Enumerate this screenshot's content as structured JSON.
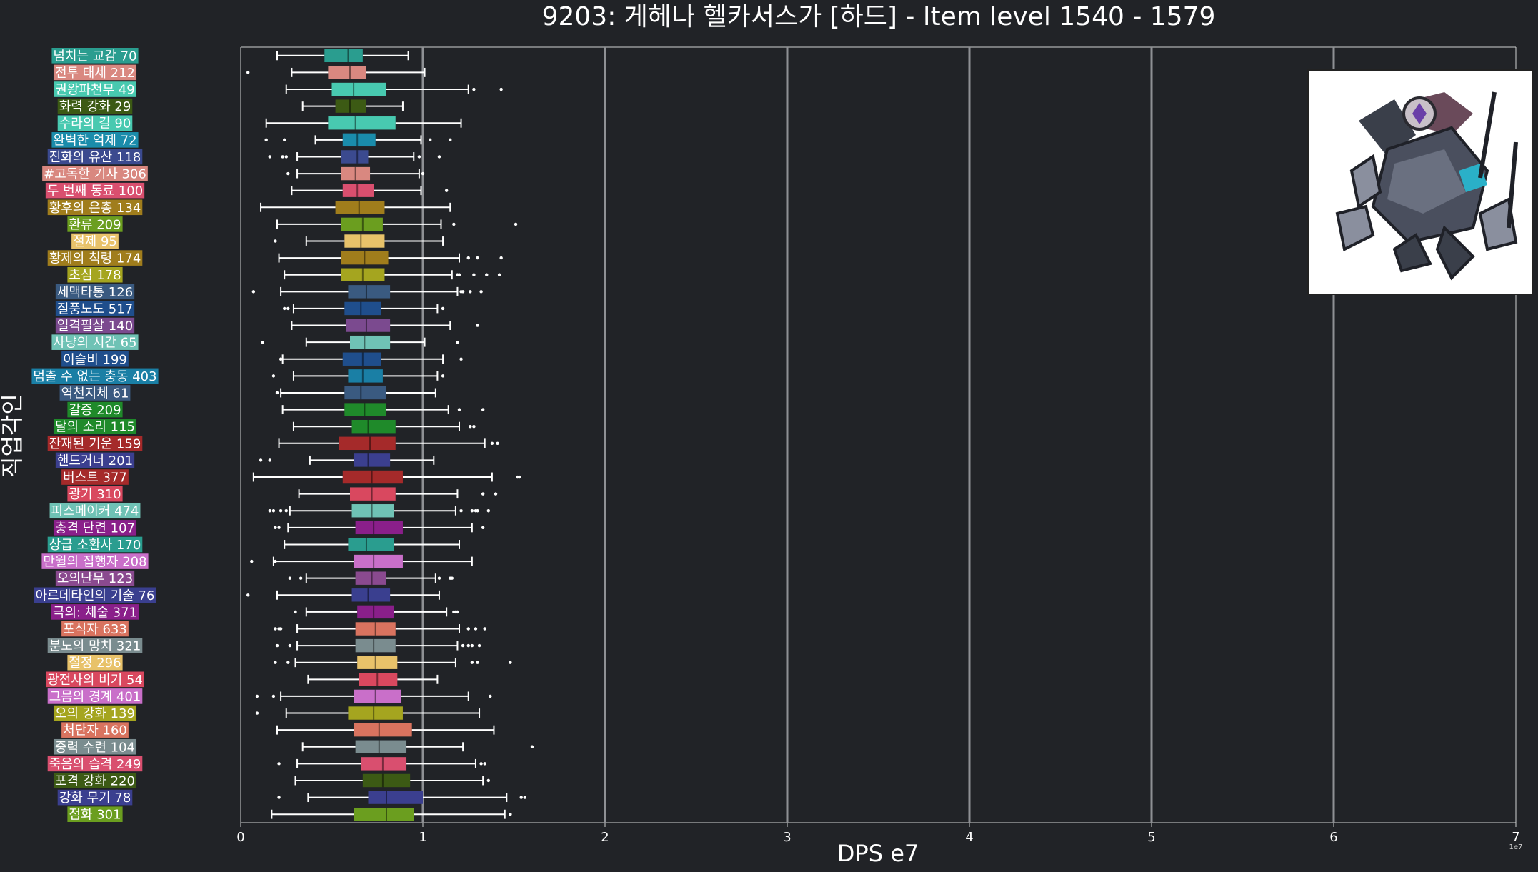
{
  "chart_data": {
    "type": "box",
    "orientation": "horizontal",
    "title": "9203: 게헤나 헬카서스가 [하드] - Item level 1540 - 1579",
    "xlabel": "DPS e7",
    "ylabel": "직업각인",
    "xlim": [
      0,
      7
    ],
    "x_ticks": [
      "0",
      "1",
      "2",
      "3",
      "4",
      "5",
      "6",
      "7"
    ],
    "x_scale_note": "1e7",
    "grid": "vertical major lines",
    "categories": [
      {
        "label": "넘치는 교감 70",
        "color": "#2a9d8f",
        "stats": [
          0.2,
          0.46,
          0.59,
          0.67,
          0.92
        ],
        "outliers": []
      },
      {
        "label": "전투 태세 212",
        "color": "#d98880",
        "stats": [
          0.28,
          0.48,
          0.6,
          0.69,
          1.01
        ],
        "outliers": [
          0.04
        ]
      },
      {
        "label": "권왕파천무 49",
        "color": "#48c9b0",
        "stats": [
          0.25,
          0.5,
          0.62,
          0.8,
          1.25
        ],
        "outliers": [
          1.28,
          1.43
        ]
      },
      {
        "label": "화력 강화 29",
        "color": "#3c5a14",
        "stats": [
          0.34,
          0.52,
          0.6,
          0.69,
          0.89
        ],
        "outliers": []
      },
      {
        "label": "수라의 길 90",
        "color": "#48c9b0",
        "stats": [
          0.14,
          0.48,
          0.63,
          0.85,
          1.21
        ],
        "outliers": []
      },
      {
        "label": "완벽한 억제 72",
        "color": "#1a8cab",
        "stats": [
          0.41,
          0.56,
          0.64,
          0.74,
          0.99
        ],
        "outliers": [
          0.14,
          0.24,
          1.04,
          1.15
        ]
      },
      {
        "label": "진화의 유산 118",
        "color": "#3b4a8f",
        "stats": [
          0.31,
          0.55,
          0.64,
          0.7,
          0.95
        ],
        "outliers": [
          0.16,
          0.23,
          0.25,
          0.98,
          1.09
        ]
      },
      {
        "label": "#고독한 기사 306",
        "color": "#d98880",
        "stats": [
          0.31,
          0.55,
          0.63,
          0.71,
          0.98
        ],
        "outliers": [
          0.26,
          1.0
        ]
      },
      {
        "label": "두 번째 동료 100",
        "color": "#d94f6f",
        "stats": [
          0.28,
          0.56,
          0.64,
          0.73,
          0.99
        ],
        "outliers": [
          1.13
        ]
      },
      {
        "label": "황후의 은총 134",
        "color": "#a07d1c",
        "stats": [
          0.11,
          0.52,
          0.65,
          0.79,
          1.15
        ],
        "outliers": []
      },
      {
        "label": "환류 209",
        "color": "#6b9e1f",
        "stats": [
          0.2,
          0.55,
          0.67,
          0.78,
          1.1
        ],
        "outliers": [
          1.17,
          1.51
        ]
      },
      {
        "label": "절제 95",
        "color": "#e8c26a",
        "stats": [
          0.36,
          0.57,
          0.66,
          0.79,
          1.11
        ],
        "outliers": [
          0.19
        ]
      },
      {
        "label": "황제의 칙령 174",
        "color": "#a07d1c",
        "stats": [
          0.21,
          0.55,
          0.68,
          0.81,
          1.2
        ],
        "outliers": [
          1.25,
          1.3,
          1.43
        ]
      },
      {
        "label": "초심 178",
        "color": "#a5a51f",
        "stats": [
          0.24,
          0.55,
          0.67,
          0.79,
          1.16
        ],
        "outliers": [
          1.19,
          1.2,
          1.28,
          1.35,
          1.42
        ]
      },
      {
        "label": "세맥타통 126",
        "color": "#3a5a80",
        "stats": [
          0.22,
          0.59,
          0.69,
          0.82,
          1.19
        ],
        "outliers": [
          0.07,
          1.21,
          1.22,
          1.26,
          1.32
        ]
      },
      {
        "label": "질풍노도 517",
        "color": "#1f4e8c",
        "stats": [
          0.29,
          0.57,
          0.66,
          0.77,
          1.08
        ],
        "outliers": [
          0.24,
          0.26,
          1.11
        ]
      },
      {
        "label": "일격필살 140",
        "color": "#7b4a8f",
        "stats": [
          0.28,
          0.58,
          0.69,
          0.82,
          1.15
        ],
        "outliers": [
          1.3
        ]
      },
      {
        "label": "사냥의 시간 65",
        "color": "#6fc2b5",
        "stats": [
          0.36,
          0.6,
          0.68,
          0.82,
          1.01
        ],
        "outliers": [
          0.12,
          1.19
        ]
      },
      {
        "label": "이슬비 199",
        "color": "#1f4e8c",
        "stats": [
          0.23,
          0.56,
          0.67,
          0.77,
          1.11
        ],
        "outliers": [
          0.22,
          1.21
        ]
      },
      {
        "label": "멈출 수 없는 충동 403",
        "color": "#1a7fa5",
        "stats": [
          0.29,
          0.59,
          0.67,
          0.78,
          1.08
        ],
        "outliers": [
          0.18,
          1.11
        ]
      },
      {
        "label": "역천지체 61",
        "color": "#3a5a80",
        "stats": [
          0.22,
          0.57,
          0.66,
          0.8,
          1.07
        ],
        "outliers": [
          0.2
        ]
      },
      {
        "label": "갈증 209",
        "color": "#1f8a2a",
        "stats": [
          0.23,
          0.57,
          0.68,
          0.8,
          1.14
        ],
        "outliers": [
          1.2,
          1.33
        ]
      },
      {
        "label": "달의 소리 115",
        "color": "#1f8a2a",
        "stats": [
          0.29,
          0.61,
          0.7,
          0.85,
          1.2
        ],
        "outliers": [
          1.26,
          1.28
        ]
      },
      {
        "label": "잔재된 기운 159",
        "color": "#a52a2a",
        "stats": [
          0.21,
          0.54,
          0.71,
          0.85,
          1.34
        ],
        "outliers": [
          1.38,
          1.41
        ]
      },
      {
        "label": "핸드거너 201",
        "color": "#3b3f8f",
        "stats": [
          0.38,
          0.62,
          0.7,
          0.82,
          1.06
        ],
        "outliers": [
          0.11,
          0.16
        ]
      },
      {
        "label": "버스트 377",
        "color": "#a52a2a",
        "stats": [
          0.07,
          0.56,
          0.72,
          0.89,
          1.38
        ],
        "outliers": [
          1.52,
          1.53
        ]
      },
      {
        "label": "광기 310",
        "color": "#d9485f",
        "stats": [
          0.32,
          0.6,
          0.72,
          0.85,
          1.19
        ],
        "outliers": [
          1.33,
          1.4
        ]
      },
      {
        "label": "피스메이커 474",
        "color": "#6fc2b5",
        "stats": [
          0.27,
          0.61,
          0.72,
          0.84,
          1.18
        ],
        "outliers": [
          0.16,
          0.18,
          0.22,
          0.25,
          1.21,
          1.27,
          1.29,
          1.3,
          1.36
        ]
      },
      {
        "label": "충격 단련 107",
        "color": "#8a1f8a",
        "stats": [
          0.26,
          0.63,
          0.73,
          0.89,
          1.27
        ],
        "outliers": [
          0.19,
          0.21,
          1.33
        ]
      },
      {
        "label": "상급 소환사 170",
        "color": "#2a9d8f",
        "stats": [
          0.24,
          0.59,
          0.69,
          0.84,
          1.2
        ],
        "outliers": []
      },
      {
        "label": "만월의 집행자 208",
        "color": "#c96fc9",
        "stats": [
          0.18,
          0.62,
          0.73,
          0.89,
          1.27
        ],
        "outliers": [
          0.06,
          0.19
        ]
      },
      {
        "label": "오의난무 123",
        "color": "#8a4a8f",
        "stats": [
          0.36,
          0.63,
          0.72,
          0.8,
          1.07
        ],
        "outliers": [
          0.27,
          0.33,
          1.09,
          1.15,
          1.16
        ]
      },
      {
        "label": "아르데타인의 기술 76",
        "color": "#3a3f8f",
        "stats": [
          0.2,
          0.61,
          0.7,
          0.82,
          1.09
        ],
        "outliers": [
          0.04
        ]
      },
      {
        "label": "극의: 체술 371",
        "color": "#8a1f8a",
        "stats": [
          0.36,
          0.64,
          0.73,
          0.84,
          1.13
        ],
        "outliers": [
          0.3,
          1.17,
          1.18,
          1.19
        ]
      },
      {
        "label": "포식자 633",
        "color": "#d9735f",
        "stats": [
          0.31,
          0.63,
          0.74,
          0.85,
          1.2
        ],
        "outliers": [
          0.19,
          0.21,
          0.22,
          1.25,
          1.29,
          1.34
        ]
      },
      {
        "label": "분노의 망치 321",
        "color": "#7a8c8f",
        "stats": [
          0.31,
          0.63,
          0.73,
          0.85,
          1.19
        ],
        "outliers": [
          0.2,
          0.27,
          1.22,
          1.25,
          1.27,
          1.31
        ]
      },
      {
        "label": "절정 296",
        "color": "#e8c26a",
        "stats": [
          0.3,
          0.64,
          0.74,
          0.86,
          1.18
        ],
        "outliers": [
          0.19,
          0.26,
          1.27,
          1.3,
          1.48
        ]
      },
      {
        "label": "광전사의 비기 54",
        "color": "#d9485f",
        "stats": [
          0.37,
          0.65,
          0.75,
          0.86,
          1.08
        ],
        "outliers": []
      },
      {
        "label": "그믐의 경계 401",
        "color": "#c96fc9",
        "stats": [
          0.22,
          0.62,
          0.74,
          0.88,
          1.25
        ],
        "outliers": [
          0.09,
          0.18,
          1.37
        ]
      },
      {
        "label": "오의 강화 139",
        "color": "#a5a51f",
        "stats": [
          0.25,
          0.59,
          0.73,
          0.89,
          1.31
        ],
        "outliers": [
          0.09
        ]
      },
      {
        "label": "처단자 160",
        "color": "#d9735f",
        "stats": [
          0.2,
          0.62,
          0.76,
          0.94,
          1.39
        ],
        "outliers": []
      },
      {
        "label": "중력 수련 104",
        "color": "#7a8c8f",
        "stats": [
          0.34,
          0.63,
          0.76,
          0.91,
          1.22
        ],
        "outliers": [
          1.6
        ]
      },
      {
        "label": "죽음의 습격 249",
        "color": "#d94f6f",
        "stats": [
          0.31,
          0.66,
          0.78,
          0.91,
          1.29
        ],
        "outliers": [
          0.21,
          1.32,
          1.34
        ]
      },
      {
        "label": "포격 강화 220",
        "color": "#3c5a14",
        "stats": [
          0.3,
          0.67,
          0.78,
          0.93,
          1.33
        ],
        "outliers": [
          1.36
        ]
      },
      {
        "label": "강화 무기 78",
        "color": "#3b3f8f",
        "stats": [
          0.37,
          0.7,
          0.8,
          1.0,
          1.46
        ],
        "outliers": [
          0.21,
          1.54,
          1.56
        ]
      },
      {
        "label": "점화 301",
        "color": "#6b9e1f",
        "stats": [
          0.17,
          0.62,
          0.8,
          0.95,
          1.45
        ],
        "outliers": [
          1.48
        ]
      }
    ]
  },
  "images": {
    "boss_portrait": "boss-portrait-illustration"
  }
}
